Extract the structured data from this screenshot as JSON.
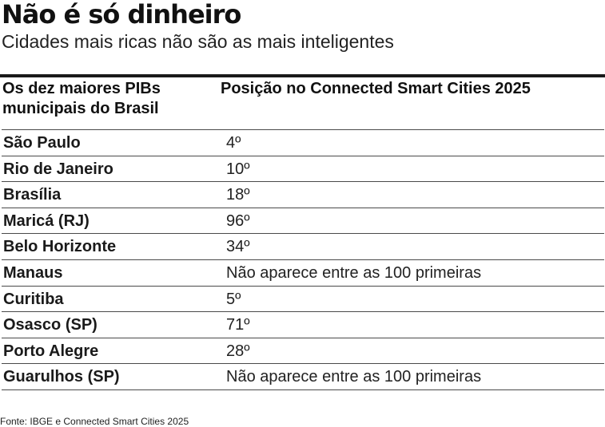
{
  "title": "Não é só dinheiro",
  "subtitle": "Cidades mais ricas não são as mais inteligentes",
  "table": {
    "headers": {
      "col1": "Os dez maiores PIBs municipais do Brasil",
      "col2": "Posição no Connected Smart Cities 2025"
    },
    "rows": [
      {
        "city": "São Paulo",
        "rank": "4º"
      },
      {
        "city": "Rio de Janeiro",
        "rank": "10º"
      },
      {
        "city": "Brasília",
        "rank": "18º"
      },
      {
        "city": "Maricá (RJ)",
        "rank": "96º"
      },
      {
        "city": "Belo Horizonte",
        "rank": "34º"
      },
      {
        "city": "Manaus",
        "rank": "Não aparece entre as 100 primeiras"
      },
      {
        "city": "Curitiba",
        "rank": "5º"
      },
      {
        "city": "Osasco (SP)",
        "rank": "71º"
      },
      {
        "city": "Porto Alegre",
        "rank": "28º"
      },
      {
        "city": "Guarulhos (SP)",
        "rank": "Não aparece entre as 100 primeiras"
      }
    ]
  },
  "source": "Fonte: IBGE e Connected Smart Cities 2025"
}
